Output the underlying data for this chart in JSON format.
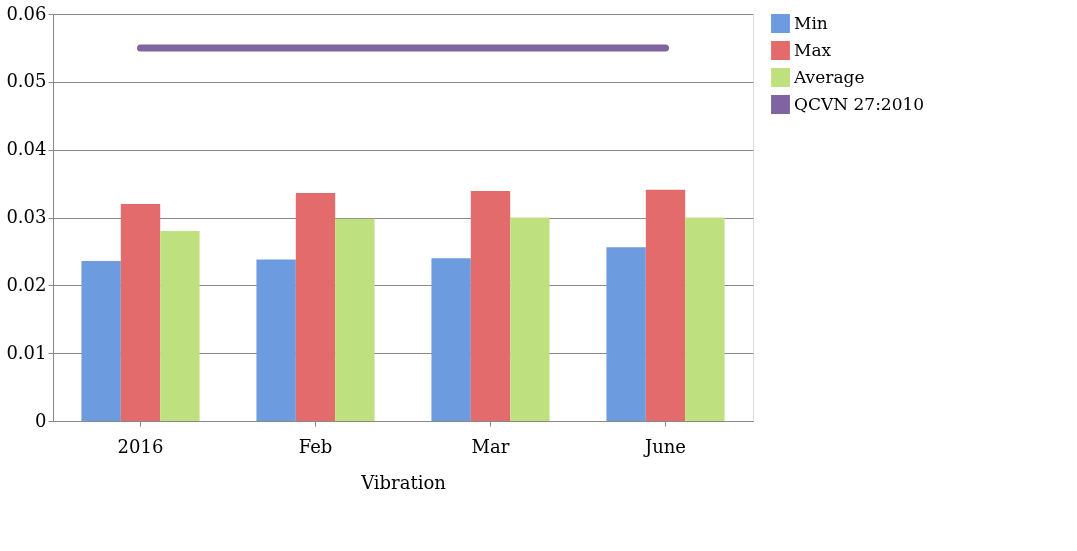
{
  "chart_data": {
    "type": "bar",
    "xlabel": "Vibration",
    "categories": [
      "2016",
      "Feb",
      "Mar",
      "June"
    ],
    "series": [
      {
        "name": "Min",
        "color": "#6c9be0",
        "values": [
          0.0236,
          0.0238,
          0.024,
          0.0256
        ]
      },
      {
        "name": "Max",
        "color": "#e46b6b",
        "values": [
          0.032,
          0.0336,
          0.0339,
          0.0341
        ]
      },
      {
        "name": "Average",
        "color": "#bfe07e",
        "values": [
          0.028,
          0.0298,
          0.03,
          0.03
        ]
      },
      {
        "name": "QCVN 27:2010",
        "type": "line",
        "color": "#8064a2",
        "values": [
          0.055,
          0.055,
          0.055,
          0.055
        ]
      }
    ],
    "ylim": [
      0,
      0.06
    ],
    "yticks": [
      0,
      0.01,
      0.02,
      0.03,
      0.04,
      0.05,
      0.06
    ],
    "grid": "y",
    "legend": "right"
  }
}
